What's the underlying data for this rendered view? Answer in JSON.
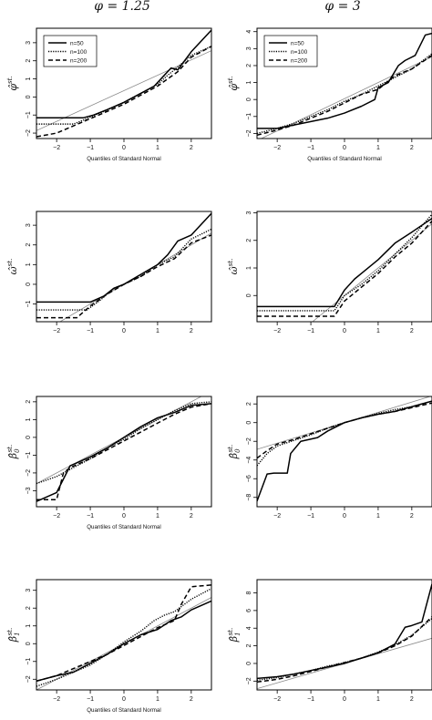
{
  "columns": [
    {
      "title": "φ = 1.25"
    },
    {
      "title": "φ = 3"
    }
  ],
  "legend": {
    "placement": "top-left",
    "entries": [
      "n=50",
      "n=100",
      "n=200"
    ]
  },
  "chart_data": [
    {
      "type": "line",
      "row": 0,
      "col": 0,
      "ylabel": "φ̂",
      "ylabel_sup": "st.",
      "xlabel": "Quantiles of Standard Normal",
      "xlim": [
        -2.6,
        2.6
      ],
      "ylim": [
        -2.3,
        3.8
      ],
      "xticks": [
        -2,
        -1,
        0,
        1,
        2
      ],
      "yticks": [
        -2,
        -1,
        0,
        1,
        2,
        3
      ],
      "show_legend": true,
      "reference_line": {
        "slope": 0.85,
        "intercept": 0.35
      },
      "series": [
        {
          "name": "n=50",
          "style": "solid",
          "x": [
            -2.6,
            -1.2,
            -0.9,
            -0.5,
            0,
            0.5,
            0.9,
            1.0,
            1.2,
            1.4,
            1.6,
            2.0,
            2.6
          ],
          "y": [
            -1.15,
            -1.15,
            -1.0,
            -0.7,
            -0.3,
            0.2,
            0.6,
            0.8,
            1.2,
            1.6,
            1.5,
            2.5,
            3.7
          ]
        },
        {
          "name": "n=100",
          "style": "dotted",
          "x": [
            -2.6,
            -1.5,
            -1.1,
            -0.6,
            0,
            0.5,
            1.0,
            1.3,
            1.5,
            2.0,
            2.6
          ],
          "y": [
            -1.5,
            -1.5,
            -1.2,
            -0.8,
            -0.3,
            0.2,
            0.7,
            1.2,
            1.5,
            2.3,
            2.8
          ]
        },
        {
          "name": "n=200",
          "style": "dashed",
          "x": [
            -2.6,
            -2.0,
            -1.5,
            -1.0,
            -0.5,
            0,
            0.5,
            1.0,
            1.3,
            1.6,
            2.0,
            2.6
          ],
          "y": [
            -2.2,
            -2.0,
            -1.6,
            -1.2,
            -0.8,
            -0.4,
            0.1,
            0.6,
            1.0,
            1.4,
            2.2,
            2.8
          ]
        }
      ]
    },
    {
      "type": "line",
      "row": 0,
      "col": 1,
      "ylabel": "φ̂",
      "ylabel_sup": "st.",
      "xlabel": "Quantiles of Standard Normal",
      "xlim": [
        -2.6,
        2.6
      ],
      "ylim": [
        -2.3,
        4.2
      ],
      "xticks": [
        -2,
        -1,
        0,
        1,
        2
      ],
      "yticks": [
        -2,
        -1,
        0,
        1,
        2,
        3,
        4
      ],
      "show_legend": true,
      "reference_line": {
        "slope": 0.95,
        "intercept": 0.05
      },
      "series": [
        {
          "name": "n=50",
          "style": "solid",
          "x": [
            -2.6,
            -2.0,
            -1.5,
            -1.0,
            -0.5,
            0,
            0.5,
            0.9,
            1.0,
            1.3,
            1.6,
            1.8,
            2.1,
            2.4,
            2.6
          ],
          "y": [
            -1.7,
            -1.7,
            -1.5,
            -1.3,
            -1.1,
            -0.8,
            -0.4,
            0,
            0.7,
            1.0,
            2.0,
            2.3,
            2.6,
            3.8,
            3.9
          ]
        },
        {
          "name": "n=100",
          "style": "dotted",
          "x": [
            -2.6,
            -2.0,
            -1.5,
            -1.0,
            -0.5,
            0,
            0.5,
            1.0,
            1.5,
            2.0,
            2.6
          ],
          "y": [
            -2.0,
            -1.7,
            -1.4,
            -1.0,
            -0.6,
            -0.1,
            0.3,
            0.8,
            1.3,
            1.8,
            2.7
          ]
        },
        {
          "name": "n=200",
          "style": "dashed",
          "x": [
            -2.6,
            -2.0,
            -1.5,
            -1.0,
            -0.5,
            0,
            0.5,
            1.0,
            1.5,
            2.0,
            2.6
          ],
          "y": [
            -2.1,
            -1.8,
            -1.5,
            -1.1,
            -0.7,
            -0.2,
            0.3,
            0.6,
            1.4,
            1.8,
            2.6
          ]
        }
      ]
    },
    {
      "type": "line",
      "row": 1,
      "col": 0,
      "ylabel": "ω̂",
      "ylabel_sup": "st.",
      "xlabel": "",
      "xlim": [
        -2.6,
        2.6
      ],
      "ylim": [
        -1.9,
        3.7
      ],
      "xticks": [
        -2,
        -1,
        0,
        1,
        2
      ],
      "yticks": [
        -1,
        0,
        1,
        2,
        3
      ],
      "show_legend": false,
      "reference_line": {
        "slope": 1.0,
        "intercept": 0.0
      },
      "series": [
        {
          "name": "n=50",
          "style": "solid",
          "x": [
            -2.6,
            -1.0,
            -0.6,
            -0.3,
            0,
            0.5,
            1.0,
            1.3,
            1.6,
            2.0,
            2.6
          ],
          "y": [
            -0.9,
            -0.9,
            -0.6,
            -0.2,
            0.0,
            0.5,
            1.0,
            1.5,
            2.2,
            2.5,
            3.6
          ]
        },
        {
          "name": "n=100",
          "style": "dotted",
          "x": [
            -2.6,
            -1.1,
            -0.7,
            -0.3,
            0,
            0.5,
            1.0,
            1.5,
            2.0,
            2.6
          ],
          "y": [
            -1.3,
            -1.3,
            -0.8,
            -0.2,
            0.0,
            0.4,
            1.0,
            1.4,
            2.3,
            2.8
          ]
        },
        {
          "name": "n=200",
          "style": "dashed",
          "x": [
            -2.6,
            -1.4,
            -1.0,
            -0.5,
            0,
            0.5,
            1.0,
            1.5,
            2.0,
            2.6
          ],
          "y": [
            -1.7,
            -1.7,
            -1.1,
            -0.5,
            0.0,
            0.4,
            0.9,
            1.3,
            2.1,
            2.5
          ]
        }
      ]
    },
    {
      "type": "line",
      "row": 1,
      "col": 1,
      "ylabel": "ω̂",
      "ylabel_sup": "st.",
      "xlabel": "",
      "xlim": [
        -2.6,
        2.6
      ],
      "ylim": [
        -0.95,
        3.05
      ],
      "xticks": [
        -2,
        -1,
        0,
        1,
        2
      ],
      "yticks": [
        0,
        1,
        2,
        3
      ],
      "show_legend": false,
      "reference_line": {
        "slope": 1.0,
        "intercept": 0.0
      },
      "series": [
        {
          "name": "n=50",
          "style": "solid",
          "x": [
            -2.6,
            -0.3,
            0,
            0.3,
            0.6,
            1.0,
            1.5,
            2.0,
            2.6
          ],
          "y": [
            -0.4,
            -0.4,
            0.2,
            0.6,
            0.9,
            1.3,
            1.9,
            2.3,
            2.8
          ]
        },
        {
          "name": "n=100",
          "style": "dotted",
          "x": [
            -2.6,
            -0.3,
            0,
            0.5,
            1.0,
            1.5,
            2.0,
            2.6
          ],
          "y": [
            -0.55,
            -0.55,
            0.0,
            0.4,
            0.9,
            1.5,
            2.1,
            2.95
          ]
        },
        {
          "name": "n=200",
          "style": "dashed",
          "x": [
            -2.6,
            -0.3,
            0,
            0.5,
            1.0,
            1.5,
            2.0,
            2.6
          ],
          "y": [
            -0.75,
            -0.75,
            -0.2,
            0.3,
            0.8,
            1.4,
            1.9,
            2.7
          ]
        }
      ]
    },
    {
      "type": "line",
      "row": 2,
      "col": 0,
      "ylabel": "β̂",
      "ylabel_sub": "0",
      "ylabel_sup": "st.",
      "xlabel": "Quantiles of Standard Normal",
      "xlim": [
        -2.6,
        2.6
      ],
      "ylim": [
        -3.9,
        2.3
      ],
      "xticks": [
        -2,
        -1,
        0,
        1,
        2
      ],
      "yticks": [
        -3,
        -2,
        -1,
        0,
        1,
        2
      ],
      "show_legend": false,
      "reference_line": {
        "slope": 1.0,
        "intercept": 0.0
      },
      "series": [
        {
          "name": "n=50",
          "style": "solid",
          "x": [
            -2.6,
            -2.0,
            -1.6,
            -1.0,
            -0.5,
            0,
            0.5,
            1.0,
            1.5,
            2.0,
            2.6
          ],
          "y": [
            -3.6,
            -3.1,
            -1.6,
            -1.1,
            -0.6,
            0.0,
            0.6,
            1.1,
            1.4,
            1.8,
            1.9
          ]
        },
        {
          "name": "n=100",
          "style": "dotted",
          "x": [
            -2.6,
            -2.0,
            -1.5,
            -1.0,
            -0.5,
            0,
            0.5,
            1.0,
            1.5,
            2.0,
            2.6
          ],
          "y": [
            -2.6,
            -2.2,
            -1.7,
            -1.2,
            -0.6,
            -0.1,
            0.5,
            1.0,
            1.5,
            1.9,
            2.0
          ]
        },
        {
          "name": "n=200",
          "style": "dashed",
          "x": [
            -2.6,
            -2.0,
            -1.8,
            -1.6,
            -1.0,
            -0.5,
            0,
            0.5,
            1.0,
            1.5,
            2.0,
            2.6
          ],
          "y": [
            -3.5,
            -3.5,
            -2.0,
            -1.7,
            -1.2,
            -0.7,
            -0.2,
            0.3,
            0.8,
            1.3,
            1.7,
            1.9
          ]
        }
      ]
    },
    {
      "type": "line",
      "row": 2,
      "col": 1,
      "ylabel": "β̂",
      "ylabel_sub": "0",
      "ylabel_sup": "st.",
      "xlabel": "",
      "xlim": [
        -2.6,
        2.6
      ],
      "ylim": [
        -9,
        2.8
      ],
      "xticks": [
        -2,
        -1,
        0,
        1,
        2
      ],
      "yticks": [
        -8,
        -6,
        -4,
        -2,
        0,
        2
      ],
      "show_legend": false,
      "reference_line": {
        "slope": 1.1,
        "intercept": 0.0
      },
      "series": [
        {
          "name": "n=50",
          "style": "solid",
          "x": [
            -2.6,
            -2.3,
            -2.1,
            -1.7,
            -1.6,
            -1.3,
            -0.8,
            -0.5,
            0,
            0.5,
            1.0,
            1.5,
            2.0,
            2.6
          ],
          "y": [
            -8.4,
            -5.5,
            -5.4,
            -5.4,
            -3.3,
            -2.0,
            -1.6,
            -0.9,
            0.0,
            0.5,
            0.9,
            1.2,
            1.7,
            2.3
          ]
        },
        {
          "name": "n=100",
          "style": "dotted",
          "x": [
            -2.6,
            -2.3,
            -2.0,
            -1.5,
            -1.0,
            -0.5,
            0,
            0.5,
            1.0,
            1.5,
            2.0,
            2.6
          ],
          "y": [
            -4.6,
            -3.3,
            -2.5,
            -1.9,
            -1.3,
            -0.6,
            0.0,
            0.5,
            1.0,
            1.4,
            1.7,
            2.3
          ]
        },
        {
          "name": "n=200",
          "style": "dashed",
          "x": [
            -2.6,
            -2.3,
            -2.0,
            -1.5,
            -1.0,
            -0.5,
            0,
            0.5,
            1.0,
            1.5,
            2.0,
            2.6
          ],
          "y": [
            -3.8,
            -3.0,
            -2.3,
            -1.8,
            -1.2,
            -0.6,
            0.0,
            0.5,
            0.9,
            1.2,
            1.6,
            2.1
          ]
        }
      ]
    },
    {
      "type": "line",
      "row": 3,
      "col": 0,
      "ylabel": "β̂",
      "ylabel_sub": "1",
      "ylabel_sup": "st.",
      "xlabel": "Quantiles of Standard Normal",
      "xlim": [
        -2.6,
        2.6
      ],
      "ylim": [
        -2.6,
        3.6
      ],
      "xticks": [
        -2,
        -1,
        0,
        1,
        2
      ],
      "yticks": [
        -2,
        -1,
        0,
        1,
        2,
        3
      ],
      "show_legend": false,
      "reference_line": {
        "slope": 1.0,
        "intercept": 0.0
      },
      "series": [
        {
          "name": "n=50",
          "style": "solid",
          "x": [
            -2.6,
            -2.0,
            -1.5,
            -1.0,
            -0.5,
            0,
            0.5,
            1.0,
            1.4,
            1.7,
            2.0,
            2.6
          ],
          "y": [
            -2.1,
            -1.8,
            -1.6,
            -1.1,
            -0.6,
            0.0,
            0.5,
            0.8,
            1.3,
            1.5,
            1.9,
            2.4
          ]
        },
        {
          "name": "n=100",
          "style": "dotted",
          "x": [
            -2.6,
            -2.0,
            -1.5,
            -1.0,
            -0.5,
            0,
            0.5,
            0.9,
            1.2,
            1.5,
            2.0,
            2.6
          ],
          "y": [
            -2.4,
            -2.0,
            -1.6,
            -1.2,
            -0.6,
            0.1,
            0.7,
            1.3,
            1.6,
            1.8,
            2.5,
            3.1
          ]
        },
        {
          "name": "n=200",
          "style": "dashed",
          "x": [
            -2.6,
            -2.0,
            -1.5,
            -1.0,
            -0.5,
            0,
            0.5,
            1.0,
            1.5,
            1.7,
            2.0,
            2.6
          ],
          "y": [
            -2.1,
            -1.8,
            -1.4,
            -1.0,
            -0.6,
            -0.1,
            0.4,
            0.9,
            1.3,
            2.2,
            3.2,
            3.3
          ]
        }
      ]
    },
    {
      "type": "line",
      "row": 3,
      "col": 1,
      "ylabel": "β̂",
      "ylabel_sub": "1",
      "ylabel_sup": "st.",
      "xlabel": "",
      "xlim": [
        -2.6,
        2.6
      ],
      "ylim": [
        -3,
        9.5
      ],
      "xticks": [
        -2,
        -1,
        0,
        1,
        2
      ],
      "yticks": [
        -2,
        0,
        2,
        4,
        6,
        8
      ],
      "show_legend": false,
      "reference_line": {
        "slope": 1.1,
        "intercept": 0.0
      },
      "series": [
        {
          "name": "n=50",
          "style": "solid",
          "x": [
            -2.6,
            -2.0,
            -1.5,
            -1.0,
            -0.5,
            0,
            0.5,
            1.0,
            1.5,
            1.8,
            2.0,
            2.3,
            2.6
          ],
          "y": [
            -1.7,
            -1.5,
            -1.2,
            -0.8,
            -0.4,
            0.0,
            0.6,
            1.2,
            2.2,
            4.1,
            4.3,
            4.7,
            9.0
          ]
        },
        {
          "name": "n=100",
          "style": "dotted",
          "x": [
            -2.6,
            -2.0,
            -1.5,
            -1.0,
            -0.5,
            0,
            0.5,
            1.0,
            1.5,
            2.0,
            2.6
          ],
          "y": [
            -1.9,
            -1.6,
            -1.2,
            -0.8,
            -0.3,
            0.1,
            0.6,
            1.3,
            2.1,
            3.2,
            5.1
          ]
        },
        {
          "name": "n=200",
          "style": "dashed",
          "x": [
            -2.6,
            -2.0,
            -1.5,
            -1.0,
            -0.5,
            0,
            0.5,
            1.0,
            1.5,
            2.0,
            2.6
          ],
          "y": [
            -2.1,
            -1.8,
            -1.4,
            -0.9,
            -0.4,
            0.1,
            0.6,
            1.2,
            2.0,
            3.1,
            5.3
          ]
        }
      ]
    }
  ]
}
